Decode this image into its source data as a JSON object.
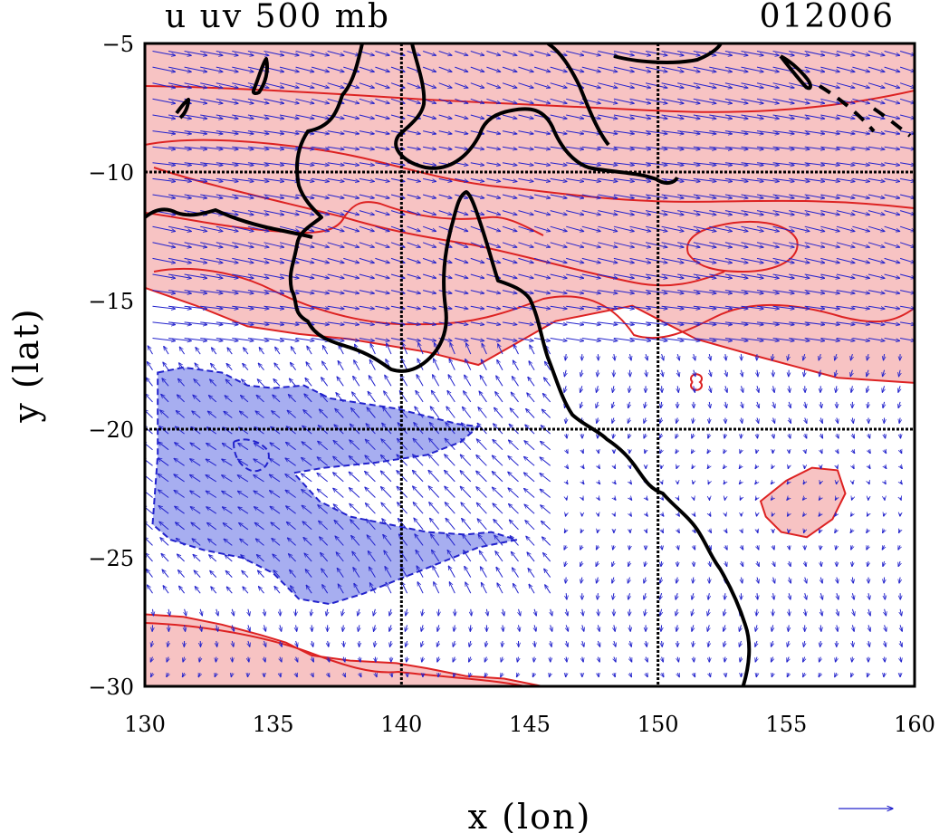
{
  "chart_data": {
    "type": "contour",
    "title": "u uv 500 mb",
    "date_label": "012006",
    "xlabel": "x (lon)",
    "ylabel": "y (lat)",
    "xlim": [
      130,
      160
    ],
    "ylim": [
      -30,
      -5
    ],
    "x_ticks": [
      130,
      135,
      140,
      145,
      150,
      155,
      160
    ],
    "y_ticks": [
      -5,
      -10,
      -15,
      -20,
      -25,
      -30
    ],
    "x_tick_labels": [
      "130",
      "135",
      "140",
      "145",
      "150",
      "155",
      "160"
    ],
    "y_tick_labels": [
      "−5",
      "−10",
      "−15",
      "−20",
      "−25",
      "−30"
    ],
    "grid_lon": [
      140,
      150
    ],
    "grid_lat": [
      -10,
      -20
    ],
    "series": [
      {
        "kind": "positive-shading",
        "regions": [
          [
            [
              130,
              -5
            ],
            [
              160,
              -5
            ],
            [
              160,
              -18.2
            ],
            [
              157,
              -18
            ],
            [
              154,
              -17.2
            ],
            [
              151.5,
              -16.5
            ],
            [
              149,
              -15.2
            ],
            [
              146,
              -15.8
            ],
            [
              143,
              -17.5
            ],
            [
              141,
              -17
            ],
            [
              138,
              -16.5
            ],
            [
              136,
              -16.3
            ],
            [
              134,
              -16
            ],
            [
              132,
              -15.2
            ],
            [
              130,
              -14.5
            ]
          ],
          [
            [
              154,
              -22.8
            ],
            [
              155,
              -22
            ],
            [
              156,
              -21.5
            ],
            [
              157,
              -21.6
            ],
            [
              157.3,
              -22.5
            ],
            [
              156.8,
              -23.5
            ],
            [
              155.8,
              -24.2
            ],
            [
              154.8,
              -24
            ],
            [
              154.2,
              -23.4
            ]
          ],
          [
            [
              130,
              -27.2
            ],
            [
              131.5,
              -27.3
            ],
            [
              133,
              -27.6
            ],
            [
              134.5,
              -28
            ],
            [
              135.5,
              -28.3
            ],
            [
              136.5,
              -28.8
            ],
            [
              138,
              -29
            ],
            [
              139.8,
              -29.1
            ],
            [
              141,
              -29.3
            ],
            [
              142.5,
              -29.6
            ],
            [
              144,
              -29.7
            ],
            [
              145.5,
              -30
            ],
            [
              130,
              -30
            ]
          ]
        ]
      },
      {
        "kind": "negative-shading",
        "regions": [
          [
            [
              130.5,
              -17.8
            ],
            [
              131.5,
              -17.6
            ],
            [
              133,
              -17.8
            ],
            [
              134,
              -18.3
            ],
            [
              135,
              -18.4
            ],
            [
              136.2,
              -18.3
            ],
            [
              137.2,
              -18.8
            ],
            [
              138.5,
              -19
            ],
            [
              139.8,
              -19.2
            ],
            [
              141,
              -19.5
            ],
            [
              142.2,
              -19.8
            ],
            [
              143,
              -19.9
            ],
            [
              142.3,
              -20.5
            ],
            [
              141,
              -21
            ],
            [
              139,
              -21.3
            ],
            [
              137,
              -21.5
            ],
            [
              135.8,
              -21.7
            ],
            [
              136.8,
              -22.8
            ],
            [
              138,
              -23.4
            ],
            [
              139.5,
              -23.7
            ],
            [
              141,
              -24
            ],
            [
              142.5,
              -24.1
            ],
            [
              143.5,
              -24
            ],
            [
              144.5,
              -24.3
            ],
            [
              143,
              -24.6
            ],
            [
              141.5,
              -25.2
            ],
            [
              140,
              -25.8
            ],
            [
              138.5,
              -26.4
            ],
            [
              137.2,
              -26.8
            ],
            [
              136,
              -26.6
            ],
            [
              135,
              -25.6
            ],
            [
              133.8,
              -25
            ],
            [
              132.3,
              -24.7
            ],
            [
              131,
              -24.3
            ],
            [
              130.3,
              -23.7
            ],
            [
              130.5,
              -21
            ]
          ]
        ]
      }
    ],
    "coastline_points": 0
  }
}
